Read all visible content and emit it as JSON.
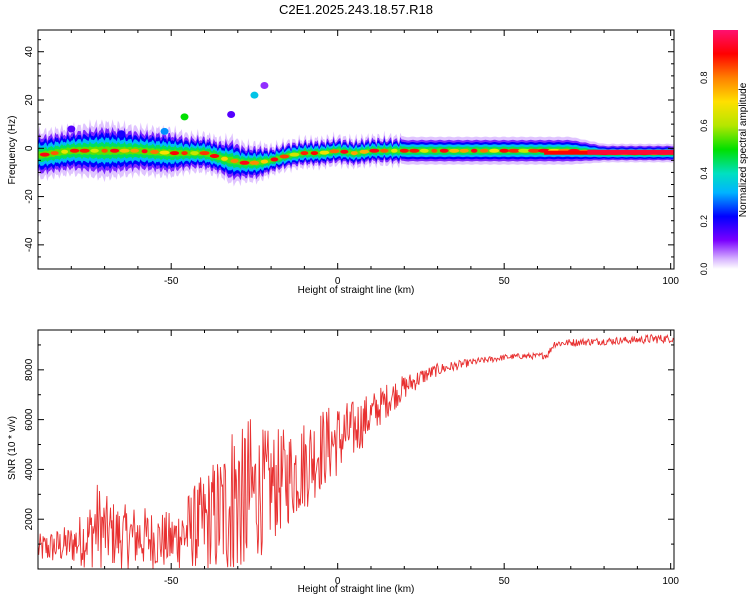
{
  "title": "C2E1.2025.243.18.57.R18",
  "chart_data": [
    {
      "type": "heatmap",
      "xlabel": "Height of straight line (km)",
      "ylabel": "Frequency (Hz)",
      "xlim": [
        -90,
        101
      ],
      "ylim": [
        -50,
        49
      ],
      "xticks": [
        -50,
        0,
        50,
        100
      ],
      "xtick_labels": [
        "-50",
        "0",
        "50",
        "100"
      ],
      "yticks": [
        -40,
        -20,
        0,
        20,
        40
      ],
      "ytick_labels": [
        "-40",
        "-20",
        "0",
        "20",
        "40"
      ],
      "ridge": {
        "x": [
          -90,
          -80,
          -70,
          -60,
          -50,
          -45,
          -40,
          -35,
          -32,
          -28,
          -24,
          -20,
          -15,
          -10,
          -5,
          0,
          5,
          10,
          15,
          20,
          30,
          40,
          50,
          60,
          70,
          80,
          90,
          100
        ],
        "center": [
          -3,
          -1,
          -1,
          -1,
          -2,
          -2,
          -2,
          -4,
          -5,
          -6,
          -6,
          -5,
          -3,
          -2,
          -2,
          -1,
          -2,
          -1,
          -1,
          -1,
          -1,
          -1,
          -1,
          -1,
          -1,
          -2,
          -2,
          -2
        ],
        "halfwidth": [
          5,
          5,
          6,
          5,
          5,
          4,
          4,
          4,
          5,
          4,
          4,
          3,
          3,
          3,
          3,
          3,
          3,
          3,
          3,
          3,
          3,
          3,
          3,
          3,
          3,
          2,
          2,
          2
        ]
      },
      "blobs": [
        {
          "x": -52,
          "y": 7,
          "value": 0.3
        },
        {
          "x": -46,
          "y": 13,
          "value": 0.5
        },
        {
          "x": -32,
          "y": 14,
          "value": 0.15
        },
        {
          "x": -25,
          "y": 22,
          "value": 0.35
        },
        {
          "x": -22,
          "y": 26,
          "value": 0.1
        },
        {
          "x": -65,
          "y": 6,
          "value": 0.2
        },
        {
          "x": -80,
          "y": 8,
          "value": 0.15
        }
      ],
      "colorbar": {
        "label": "Normalized spectral amplitude",
        "range": [
          0,
          1
        ],
        "ticks": [
          0.0,
          0.2,
          0.4,
          0.6,
          0.8
        ],
        "tick_labels": [
          "0.0",
          "0.2",
          "0.4",
          "0.6",
          "0.8"
        ]
      }
    },
    {
      "type": "line",
      "xlabel": "Height of straight line (km)",
      "ylabel": "SNR (10 * v/v)",
      "xlim": [
        -90,
        101
      ],
      "ylim": [
        0,
        9600
      ],
      "xticks": [
        -50,
        0,
        50,
        100
      ],
      "xtick_labels": [
        "-50",
        "0",
        "50",
        "100"
      ],
      "yticks": [
        2000,
        4000,
        6000,
        8000
      ],
      "ytick_labels": [
        "2000",
        "4000",
        "6000",
        "8000"
      ],
      "series": [
        {
          "name": "SNR",
          "color": "#e83030",
          "x": [
            -90,
            -85,
            -80,
            -75,
            -72,
            -70,
            -65,
            -60,
            -55,
            -50,
            -45,
            -40,
            -35,
            -32,
            -30,
            -29,
            -28,
            -25,
            -20,
            -15,
            -10,
            -5,
            0,
            5,
            10,
            15,
            20,
            25,
            30,
            40,
            50,
            55,
            60,
            63,
            65,
            70,
            80,
            90,
            95,
            100
          ],
          "mean": [
            800,
            900,
            1000,
            1300,
            1800,
            1500,
            1300,
            1300,
            1200,
            1100,
            1500,
            1800,
            2200,
            2600,
            3000,
            3200,
            3000,
            3000,
            3300,
            3700,
            4200,
            4800,
            5200,
            5600,
            6200,
            6800,
            7300,
            7700,
            8000,
            8300,
            8500,
            8550,
            8550,
            8600,
            9050,
            9100,
            9150,
            9200,
            9250,
            9250
          ],
          "amplitude": [
            600,
            700,
            800,
            1300,
            1800,
            1500,
            1300,
            1300,
            1200,
            1200,
            1600,
            2100,
            2700,
            3200,
            4500,
            5000,
            3800,
            2800,
            2300,
            2000,
            1900,
            1700,
            1500,
            1200,
            900,
            700,
            500,
            350,
            250,
            150,
            120,
            120,
            120,
            150,
            150,
            150,
            150,
            150,
            200,
            150
          ]
        }
      ]
    }
  ]
}
